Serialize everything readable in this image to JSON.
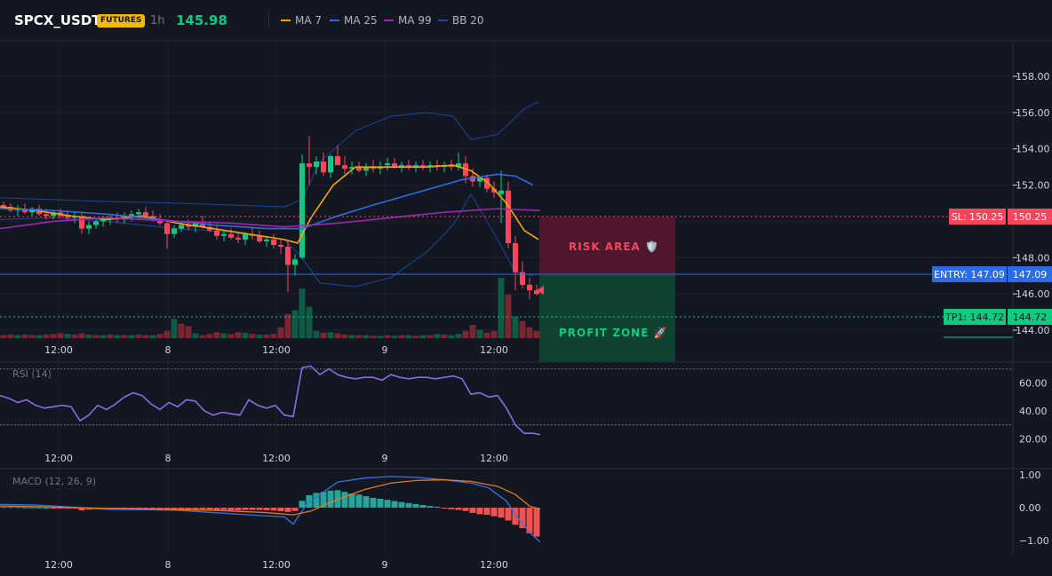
{
  "header": {
    "symbol": "SPCX_USDT",
    "badge": "FUTURES",
    "timeframe": "1h",
    "price": "145.98",
    "legend": [
      {
        "label": "MA 7",
        "color": "#f7a600"
      },
      {
        "label": "MA 25",
        "color": "#2e6be6"
      },
      {
        "label": "MA 99",
        "color": "#9c27b0"
      },
      {
        "label": "BB 20",
        "color": "#1f4aa8"
      }
    ]
  },
  "colors": {
    "up": "#0ecb81",
    "down": "#f6465d",
    "ma7": "#f7a600",
    "ma25": "#2e6be6",
    "ma99": "#9c27b0",
    "bb": "#1f4aa8",
    "rsi": "#8e6ae0",
    "macd": "#3d6fe0",
    "signal": "#e07a1f"
  },
  "price_axis": {
    "ticks": [
      "158.00",
      "156.00",
      "154.00",
      "152.00",
      "148.00",
      "146.00",
      "144.00"
    ]
  },
  "time_axis": {
    "labels": [
      "12:00",
      "8",
      "12:00",
      "9",
      "12:00"
    ]
  },
  "levels": {
    "sl": {
      "label": "SL: 150.25",
      "value": "150.25"
    },
    "entry": {
      "label": "ENTRY: 147.09",
      "value": "147.09"
    },
    "tp1": {
      "label": "TP1: 144.72",
      "value": "144.72"
    }
  },
  "zones": {
    "risk": "RISK AREA 🛡️",
    "profit": "PROFIT ZONE 🚀"
  },
  "rsi": {
    "title": "RSI (14)",
    "ticks": [
      "60.00",
      "40.00",
      "20.00"
    ]
  },
  "macd": {
    "title": "MACD (12, 26, 9)",
    "ticks": [
      "1.00",
      "0.00",
      "−1.00"
    ]
  }
}
